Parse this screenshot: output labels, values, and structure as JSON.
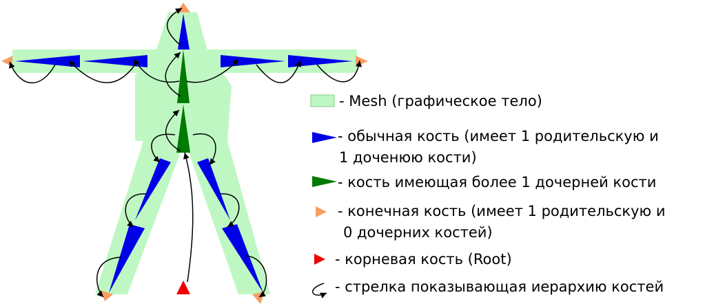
{
  "colors": {
    "mesh_fill": "#bff7c3",
    "mesh_stroke": "#88cc8c",
    "regular_bone": "#0000e6",
    "multi_child_bone": "#007a00",
    "end_bone": "#f79e62",
    "root_bone": "#ee0000",
    "arrow": "#000000"
  },
  "legend": {
    "mesh": {
      "icon": "green-rectangle",
      "text": "- Mesh (графическое тело)"
    },
    "regular_bone": {
      "icon": "blue-triangle",
      "line1": "- обычная кость (имеет 1 родительскую и",
      "line2": "1 доченюю кости)"
    },
    "multi_child_bone": {
      "icon": "green-triangle",
      "text": "- кость имеющая более 1 дочерней кости"
    },
    "end_bone": {
      "icon": "orange-triangle",
      "line1": "- конечная кость (имеет 1 родительскую и",
      "line2": "0 дочерних костей)"
    },
    "root_bone": {
      "icon": "red-triangle",
      "text": "- корневая кость (Root)"
    },
    "arrow": {
      "icon": "curved-arrow",
      "text": "- стрелка показывающая иерархию костей"
    }
  }
}
